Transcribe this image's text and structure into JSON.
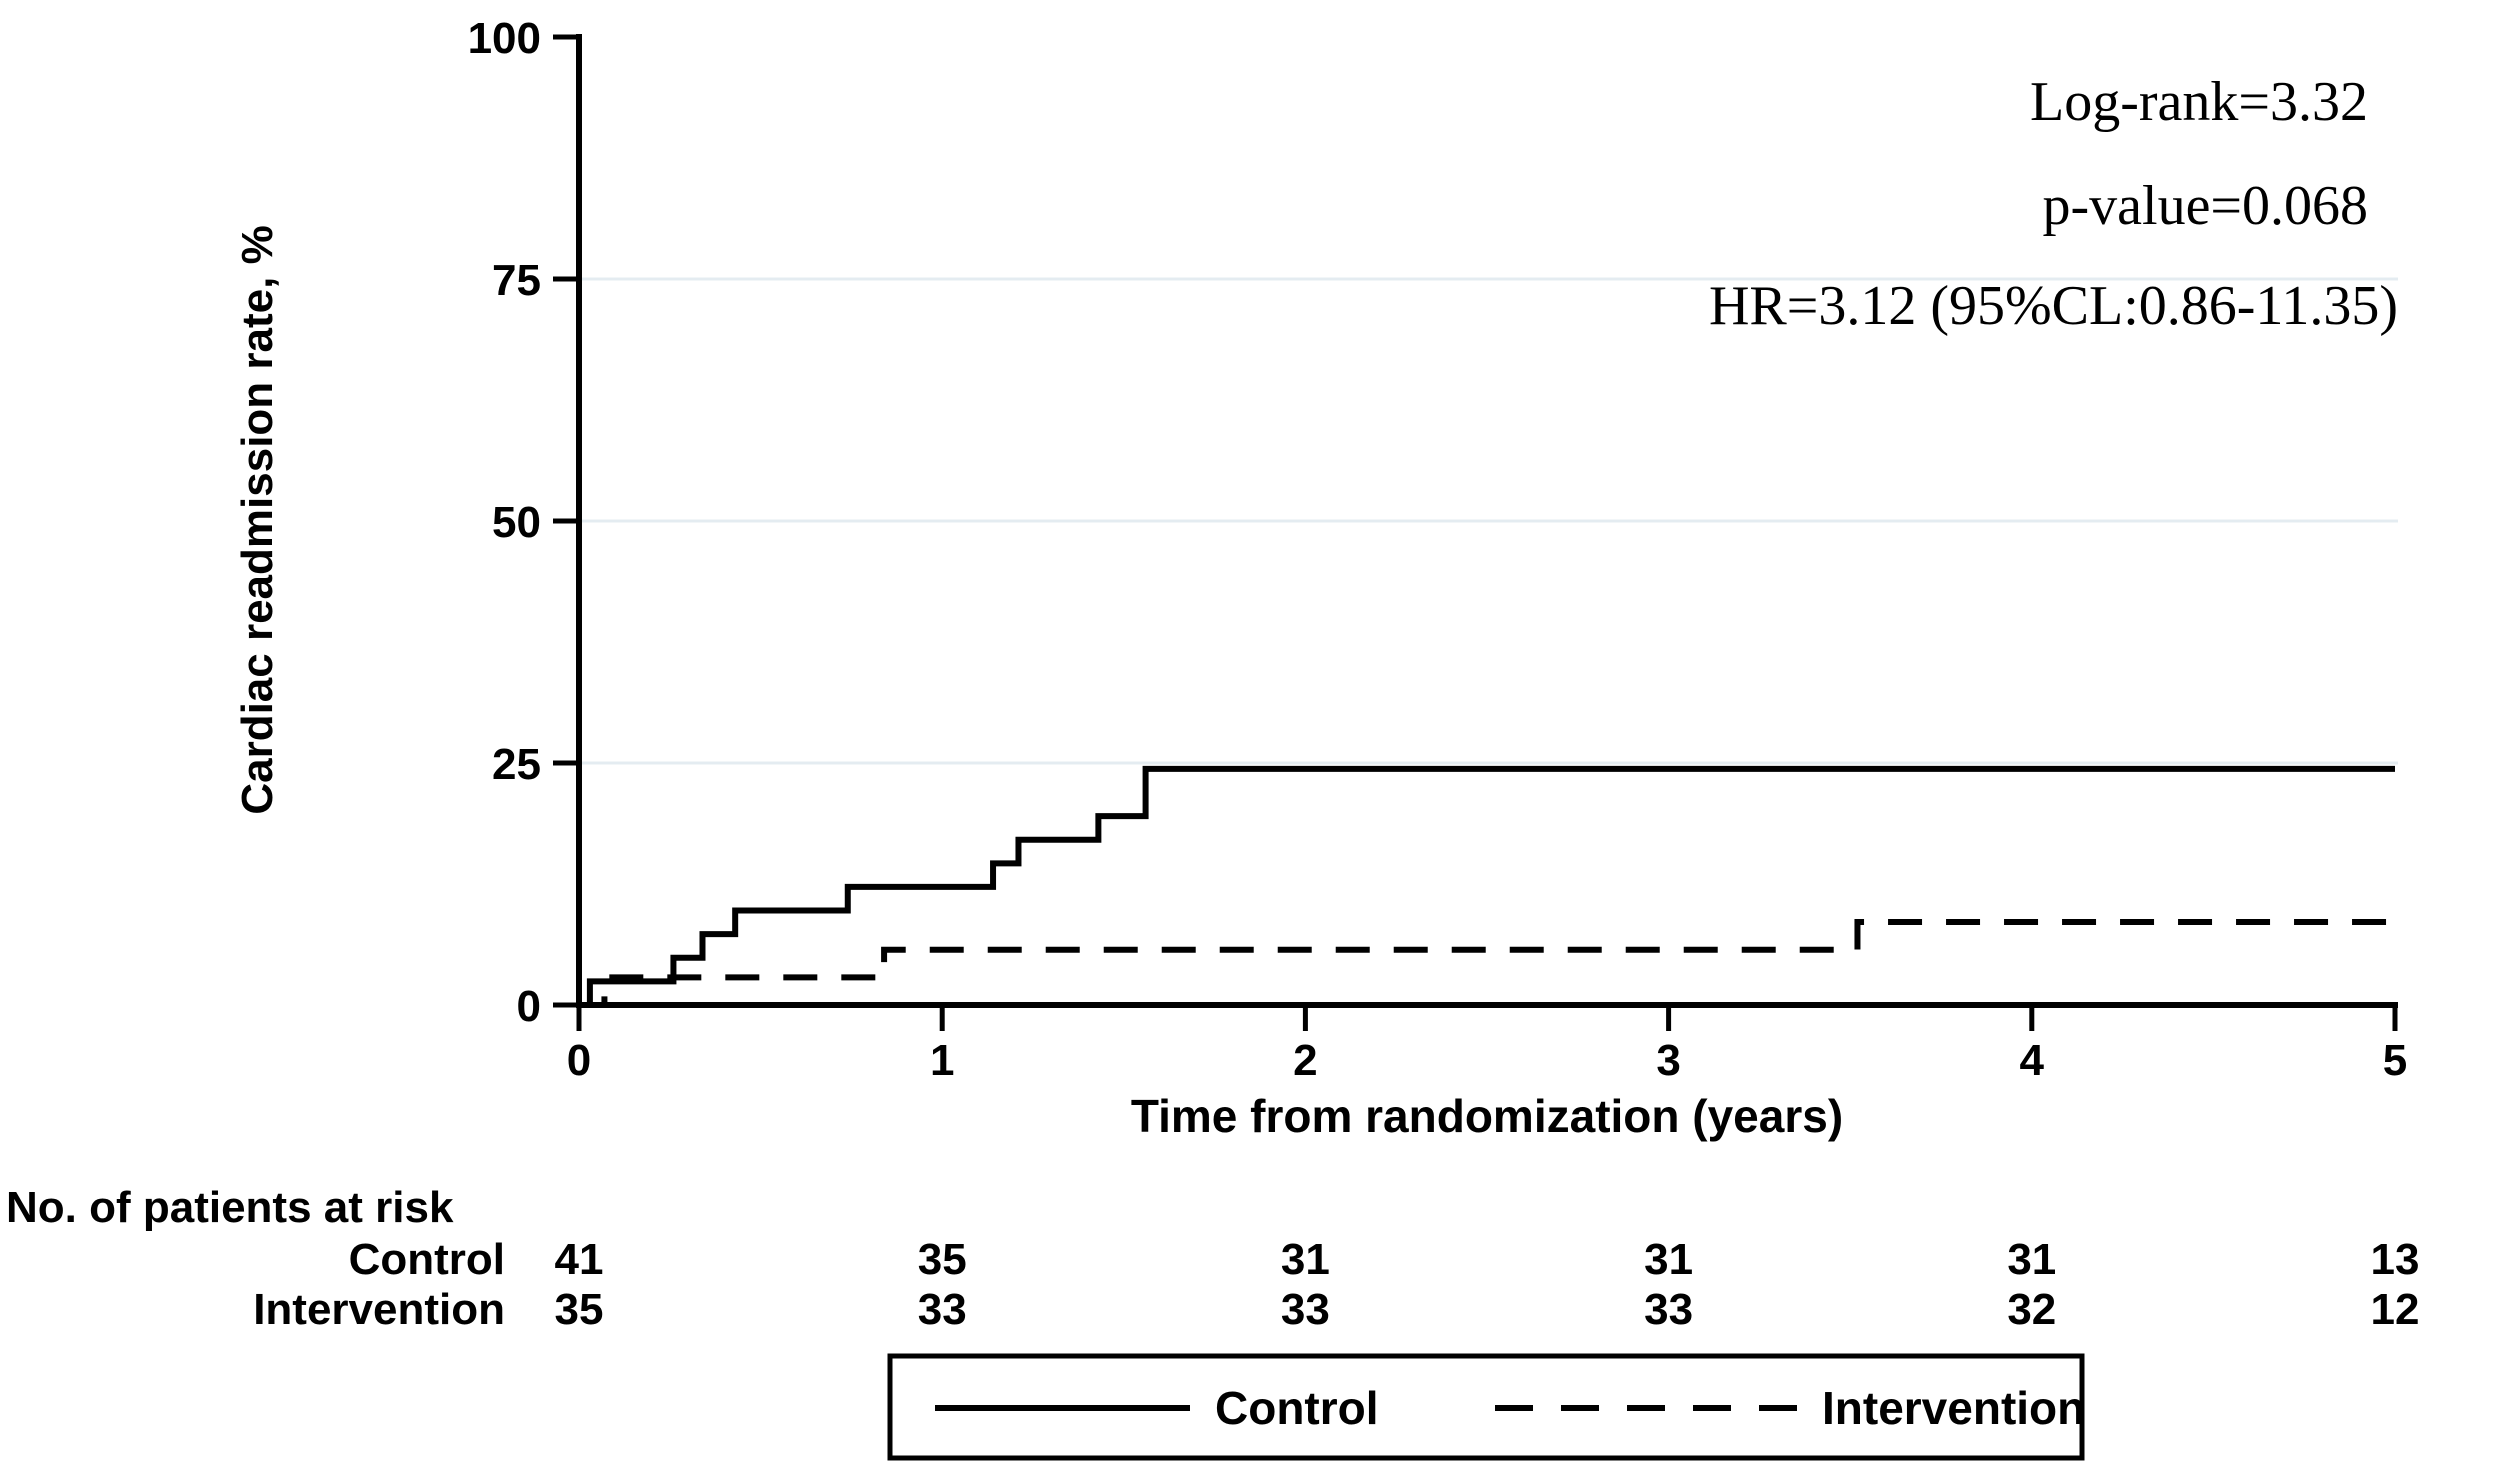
{
  "figure": {
    "background": "#ffffff",
    "line_color": "#000000",
    "gridline_color": "#e4ecf1"
  },
  "chart_data": {
    "type": "line",
    "subtype": "kaplan-meier-step",
    "title": "",
    "xlabel": "Time from randomization (years)",
    "ylabel": "Cardiac readmission rate, %",
    "xlim": [
      0,
      5
    ],
    "ylim": [
      0,
      100
    ],
    "xticks": [
      0,
      1,
      2,
      3,
      4,
      5
    ],
    "yticks": [
      0,
      25,
      50,
      75,
      100
    ],
    "grid_y": [
      25,
      50,
      75
    ],
    "grid_on": true,
    "legend_position": "bottom-center-boxed",
    "series": [
      {
        "name": "Control",
        "style": "solid",
        "n_at_start": 41,
        "points": [
          [
            0,
            0
          ],
          [
            0.03,
            2.44
          ],
          [
            0.26,
            4.88
          ],
          [
            0.34,
            7.32
          ],
          [
            0.43,
            9.76
          ],
          [
            0.74,
            12.2
          ],
          [
            1.14,
            14.63
          ],
          [
            1.21,
            17.07
          ],
          [
            1.43,
            19.51
          ],
          [
            1.56,
            24.39
          ],
          [
            5,
            24.39
          ]
        ]
      },
      {
        "name": "Intervention",
        "style": "dashed",
        "n_at_start": 35,
        "points": [
          [
            0,
            0
          ],
          [
            0.07,
            2.86
          ],
          [
            0.84,
            5.71
          ],
          [
            3.52,
            8.57
          ],
          [
            5,
            8.57
          ]
        ]
      }
    ],
    "stats": [
      "Log-rank=3.32",
      "p-value=0.068",
      "HR=3.12 (95%CL:0.86-11.35)"
    ]
  },
  "risk_table": {
    "title": "No. of patients at risk",
    "times": [
      0,
      1,
      2,
      3,
      4,
      5
    ],
    "rows": [
      {
        "label": "Control",
        "values": [
          41,
          35,
          31,
          31,
          31,
          13
        ]
      },
      {
        "label": "Intervention",
        "values": [
          35,
          33,
          33,
          33,
          32,
          12
        ]
      }
    ]
  },
  "legend": {
    "items": [
      {
        "label": "Control",
        "style": "solid"
      },
      {
        "label": "Intervention",
        "style": "dashed"
      }
    ]
  }
}
